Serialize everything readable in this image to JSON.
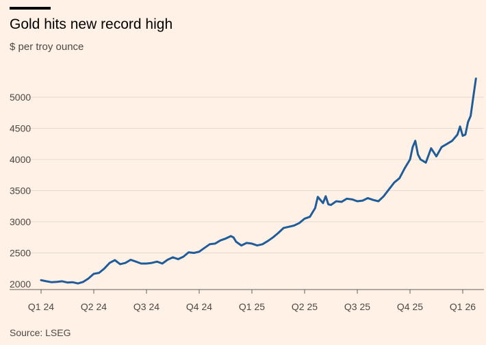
{
  "header": {
    "title": "Gold hits new record high",
    "subtitle": "$ per troy ounce"
  },
  "footer": {
    "source": "Source: LSEG"
  },
  "colors": {
    "line": "#1F5C99",
    "grid": "#E6D9CE",
    "background": "#FFF1E5",
    "baseline": "#66605C"
  },
  "chart_data": {
    "type": "line",
    "title": "Gold hits new record high",
    "subtitle": "$ per troy ounce",
    "xlabel": "",
    "ylabel": "$ per troy ounce",
    "x_ticks": [
      "Q1 24",
      "Q2 24",
      "Q3 24",
      "Q4 24",
      "Q1 25",
      "Q2 25",
      "Q3 25",
      "Q4 25",
      "Q1 26"
    ],
    "y_ticks": [
      2000,
      2500,
      3000,
      3500,
      4000,
      4500,
      5000
    ],
    "ylim": [
      1950,
      5350
    ],
    "xlim_quarters": [
      0,
      8.25
    ],
    "grid": true,
    "series": [
      {
        "name": "Gold",
        "points": [
          [
            0.0,
            2063
          ],
          [
            0.1,
            2045
          ],
          [
            0.2,
            2030
          ],
          [
            0.3,
            2035
          ],
          [
            0.4,
            2045
          ],
          [
            0.5,
            2025
          ],
          [
            0.6,
            2030
          ],
          [
            0.7,
            2010
          ],
          [
            0.8,
            2035
          ],
          [
            0.9,
            2090
          ],
          [
            1.0,
            2165
          ],
          [
            1.1,
            2180
          ],
          [
            1.2,
            2250
          ],
          [
            1.3,
            2340
          ],
          [
            1.4,
            2385
          ],
          [
            1.5,
            2320
          ],
          [
            1.6,
            2340
          ],
          [
            1.7,
            2390
          ],
          [
            1.8,
            2360
          ],
          [
            1.9,
            2330
          ],
          [
            2.0,
            2330
          ],
          [
            2.1,
            2340
          ],
          [
            2.2,
            2360
          ],
          [
            2.3,
            2330
          ],
          [
            2.4,
            2390
          ],
          [
            2.5,
            2430
          ],
          [
            2.6,
            2400
          ],
          [
            2.7,
            2440
          ],
          [
            2.8,
            2510
          ],
          [
            2.9,
            2500
          ],
          [
            3.0,
            2520
          ],
          [
            3.1,
            2580
          ],
          [
            3.2,
            2640
          ],
          [
            3.3,
            2650
          ],
          [
            3.4,
            2700
          ],
          [
            3.5,
            2730
          ],
          [
            3.6,
            2770
          ],
          [
            3.65,
            2750
          ],
          [
            3.7,
            2680
          ],
          [
            3.8,
            2620
          ],
          [
            3.9,
            2660
          ],
          [
            4.0,
            2650
          ],
          [
            4.1,
            2620
          ],
          [
            4.2,
            2640
          ],
          [
            4.3,
            2690
          ],
          [
            4.4,
            2750
          ],
          [
            4.5,
            2820
          ],
          [
            4.6,
            2900
          ],
          [
            4.7,
            2920
          ],
          [
            4.8,
            2940
          ],
          [
            4.9,
            2980
          ],
          [
            5.0,
            3050
          ],
          [
            5.1,
            3080
          ],
          [
            5.2,
            3220
          ],
          [
            5.25,
            3400
          ],
          [
            5.3,
            3350
          ],
          [
            5.35,
            3300
          ],
          [
            5.4,
            3410
          ],
          [
            5.45,
            3280
          ],
          [
            5.5,
            3270
          ],
          [
            5.6,
            3330
          ],
          [
            5.7,
            3320
          ],
          [
            5.8,
            3370
          ],
          [
            5.9,
            3360
          ],
          [
            6.0,
            3330
          ],
          [
            6.1,
            3340
          ],
          [
            6.2,
            3380
          ],
          [
            6.3,
            3350
          ],
          [
            6.4,
            3330
          ],
          [
            6.5,
            3410
          ],
          [
            6.6,
            3520
          ],
          [
            6.7,
            3630
          ],
          [
            6.8,
            3700
          ],
          [
            6.9,
            3860
          ],
          [
            7.0,
            4000
          ],
          [
            7.05,
            4200
          ],
          [
            7.1,
            4300
          ],
          [
            7.15,
            4080
          ],
          [
            7.2,
            4000
          ],
          [
            7.3,
            3950
          ],
          [
            7.4,
            4180
          ],
          [
            7.5,
            4050
          ],
          [
            7.6,
            4200
          ],
          [
            7.7,
            4250
          ],
          [
            7.8,
            4300
          ],
          [
            7.9,
            4400
          ],
          [
            7.95,
            4530
          ],
          [
            8.0,
            4380
          ],
          [
            8.05,
            4400
          ],
          [
            8.1,
            4600
          ],
          [
            8.15,
            4700
          ],
          [
            8.2,
            5000
          ],
          [
            8.25,
            5300
          ]
        ]
      }
    ]
  }
}
